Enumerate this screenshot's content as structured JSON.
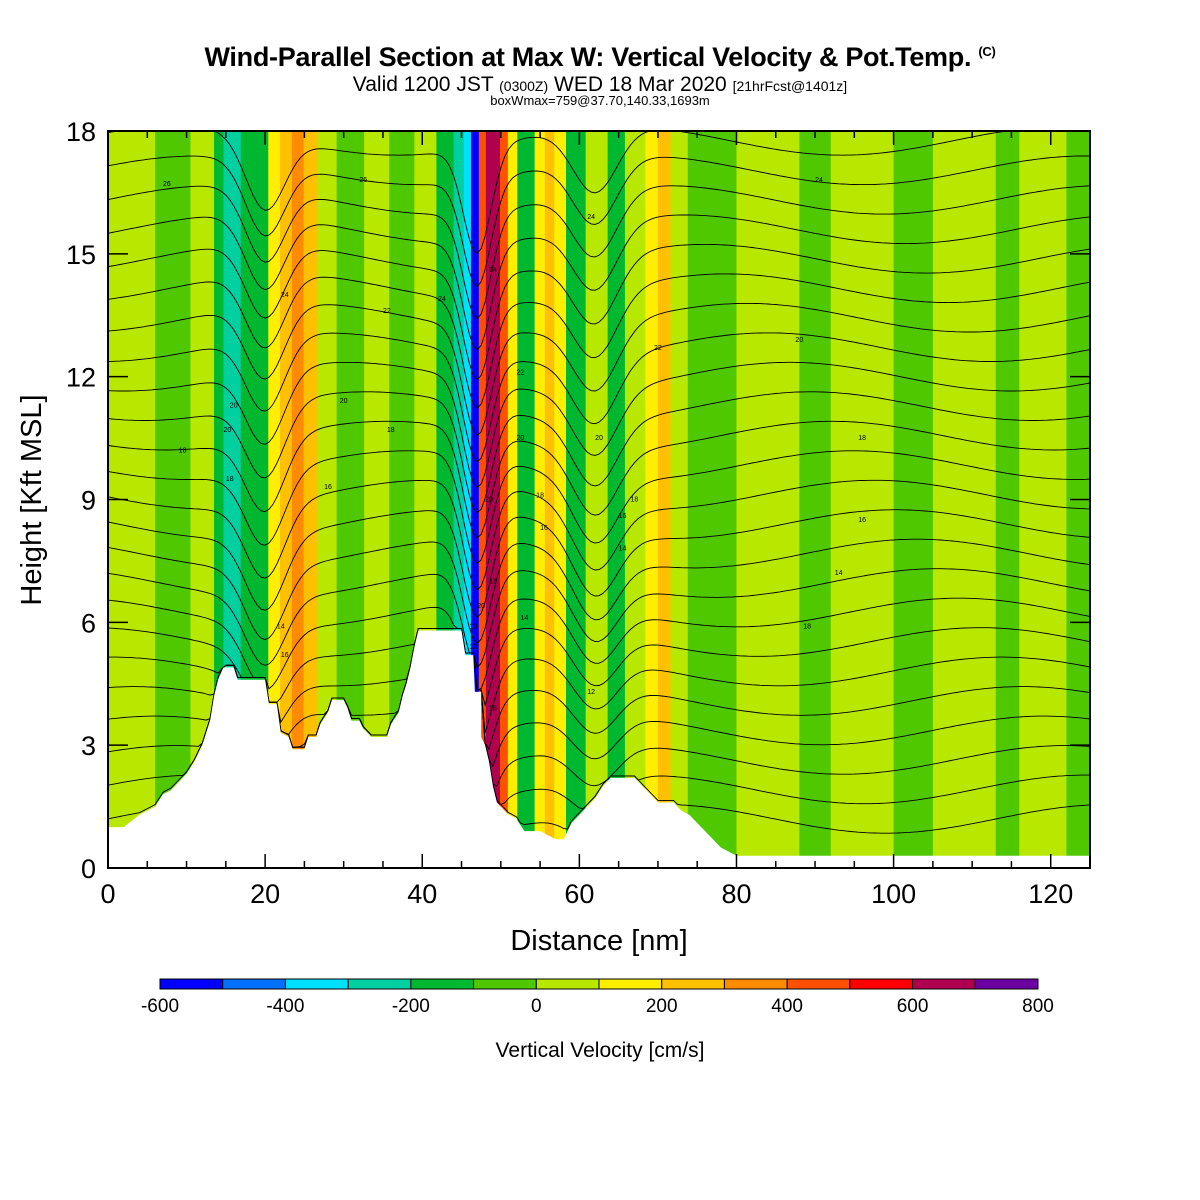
{
  "title": "Wind-Parallel Section at Max W: Vertical Velocity & Pot.Temp.",
  "title_mark": "(C)",
  "valid": {
    "prefix": "Valid 1200 JST",
    "utc": "(0300Z)",
    "date": "WED 18 Mar 2020",
    "fcst": "[21hrFcst@1401z]"
  },
  "subtitle2": "boxWmax=759@37.70,140.33,1693m",
  "chart_data": {
    "type": "heatmap",
    "xlabel": "Distance [nm]",
    "ylabel": "Height [Kft MSL]",
    "xlim": [
      0,
      125
    ],
    "ylim": [
      0,
      18
    ],
    "xticks": [
      "0",
      "20",
      "40",
      "60",
      "80",
      "100",
      "120"
    ],
    "yticks": [
      "0",
      "3",
      "6",
      "9",
      "12",
      "15",
      "18"
    ],
    "colorbar": {
      "title": "Vertical Velocity [cm/s]",
      "bounds": [
        -600,
        -500,
        -400,
        -300,
        -200,
        -100,
        0,
        100,
        200,
        300,
        400,
        500,
        600,
        700,
        800
      ],
      "labels": [
        "-600",
        "-400",
        "-200",
        "0",
        "200",
        "400",
        "600",
        "800"
      ],
      "colors": [
        "#0000ff",
        "#0070ff",
        "#00e0ff",
        "#00d0a0",
        "#00b830",
        "#50c800",
        "#b8e800",
        "#ffee00",
        "#ffc000",
        "#ff8c00",
        "#ff5000",
        "#ff0000",
        "#b00050",
        "#6a00a0"
      ]
    },
    "terrain_kft": [
      [
        0,
        1
      ],
      [
        2,
        1
      ],
      [
        4,
        1.3
      ],
      [
        6,
        1.5
      ],
      [
        7,
        1.8
      ],
      [
        8,
        1.9
      ],
      [
        9,
        2.1
      ],
      [
        10,
        2.3
      ],
      [
        11,
        2.6
      ],
      [
        12,
        3
      ],
      [
        13,
        3.6
      ],
      [
        13.5,
        4.2
      ],
      [
        14,
        4.6
      ],
      [
        14.7,
        4.9
      ],
      [
        16,
        4.9
      ],
      [
        16.5,
        4.6
      ],
      [
        20,
        4.6
      ],
      [
        20.5,
        4.0
      ],
      [
        21.5,
        4.0
      ],
      [
        22,
        3.3
      ],
      [
        23,
        3.2
      ],
      [
        23.5,
        2.9
      ],
      [
        25,
        2.9
      ],
      [
        25.5,
        3.2
      ],
      [
        26.5,
        3.2
      ],
      [
        27,
        3.5
      ],
      [
        28,
        3.8
      ],
      [
        28.5,
        4.1
      ],
      [
        30,
        4.1
      ],
      [
        30.5,
        3.9
      ],
      [
        31,
        3.6
      ],
      [
        32,
        3.6
      ],
      [
        32.5,
        3.4
      ],
      [
        33.5,
        3.2
      ],
      [
        35.5,
        3.2
      ],
      [
        36,
        3.5
      ],
      [
        37,
        3.8
      ],
      [
        37.5,
        4.2
      ],
      [
        38,
        4.5
      ],
      [
        38.5,
        4.9
      ],
      [
        39,
        5.4
      ],
      [
        39.5,
        5.8
      ],
      [
        45,
        5.8
      ],
      [
        45.5,
        5.2
      ],
      [
        46.5,
        5.2
      ],
      [
        46.7,
        4.3
      ],
      [
        47.5,
        4.3
      ],
      [
        47.5,
        3.2
      ],
      [
        48,
        3.0
      ],
      [
        48.5,
        2.6
      ],
      [
        49,
        2.0
      ],
      [
        49.5,
        1.6
      ],
      [
        50,
        1.5
      ],
      [
        51,
        1.3
      ],
      [
        52,
        1.2
      ],
      [
        53,
        0.9
      ],
      [
        55,
        0.9
      ],
      [
        56,
        0.8
      ],
      [
        57,
        0.7
      ],
      [
        58,
        0.7
      ],
      [
        58.5,
        0.9
      ],
      [
        59,
        1.1
      ],
      [
        60,
        1.3
      ],
      [
        61,
        1.5
      ],
      [
        62,
        1.7
      ],
      [
        63,
        2.0
      ],
      [
        64,
        2.2
      ],
      [
        67,
        2.2
      ],
      [
        68,
        2.0
      ],
      [
        69,
        1.8
      ],
      [
        70,
        1.6
      ],
      [
        72,
        1.6
      ],
      [
        73,
        1.4
      ],
      [
        74,
        1.3
      ],
      [
        75,
        1.1
      ],
      [
        76,
        0.9
      ],
      [
        77,
        0.7
      ],
      [
        78,
        0.5
      ],
      [
        80,
        0.3
      ],
      [
        125,
        0.3
      ]
    ],
    "columns": [
      {
        "x": 0,
        "w": 14,
        "v": 20
      },
      {
        "x": 6,
        "w": 6,
        "v": -40
      },
      {
        "x": 10.5,
        "w": 4,
        "v": 20
      },
      {
        "x": 13.5,
        "w": 1.2,
        "v": -150
      },
      {
        "x": 14.7,
        "w": 2.2,
        "v": -260
      },
      {
        "x": 16.9,
        "w": 3.5,
        "v": -130
      },
      {
        "x": 20.4,
        "w": 1.5,
        "v": 150
      },
      {
        "x": 21.9,
        "w": 1.5,
        "v": 260
      },
      {
        "x": 23.4,
        "w": 1.5,
        "v": 340
      },
      {
        "x": 24.9,
        "w": 1.8,
        "v": 220
      },
      {
        "x": 26.7,
        "w": 2.4,
        "v": 60
      },
      {
        "x": 29.1,
        "w": 3.5,
        "v": -70
      },
      {
        "x": 32.6,
        "w": 3.2,
        "v": 40
      },
      {
        "x": 35.8,
        "w": 3.2,
        "v": -60
      },
      {
        "x": 39.0,
        "w": 2.8,
        "v": 50
      },
      {
        "x": 41.8,
        "w": 2.2,
        "v": -150
      },
      {
        "x": 44.0,
        "w": 1.3,
        "v": -260
      },
      {
        "x": 45.3,
        "w": 0.9,
        "v": -380
      },
      {
        "x": 46.2,
        "w": 1.0,
        "v": -520
      },
      {
        "x": 47.2,
        "w": 0.9,
        "v": 420
      },
      {
        "x": 48.1,
        "w": 1.8,
        "v": 620
      },
      {
        "x": 49.9,
        "w": 1.0,
        "v": 440
      },
      {
        "x": 50.9,
        "w": 1.2,
        "v": 150
      },
      {
        "x": 52.1,
        "w": 2.2,
        "v": -130
      },
      {
        "x": 54.3,
        "w": 1.3,
        "v": 160
      },
      {
        "x": 55.6,
        "w": 1.2,
        "v": 260
      },
      {
        "x": 56.8,
        "w": 1.5,
        "v": 120
      },
      {
        "x": 58.3,
        "w": 2.5,
        "v": -120
      },
      {
        "x": 60.8,
        "w": 2.8,
        "v": 40
      },
      {
        "x": 63.6,
        "w": 2.2,
        "v": -140
      },
      {
        "x": 65.8,
        "w": 2.6,
        "v": 30
      },
      {
        "x": 68.4,
        "w": 1.6,
        "v": 150
      },
      {
        "x": 70.0,
        "w": 1.6,
        "v": 260
      },
      {
        "x": 71.6,
        "w": 2.2,
        "v": 60
      },
      {
        "x": 73.8,
        "w": 6.2,
        "v": -50
      },
      {
        "x": 80.0,
        "w": 8.0,
        "v": 40
      },
      {
        "x": 88.0,
        "w": 4.0,
        "v": -30
      },
      {
        "x": 92.0,
        "w": 8.0,
        "v": 40
      },
      {
        "x": 100.0,
        "w": 5.0,
        "v": -40
      },
      {
        "x": 105.0,
        "w": 8.0,
        "v": 40
      },
      {
        "x": 113.0,
        "w": 3.0,
        "v": -40
      },
      {
        "x": 116.0,
        "w": 6.0,
        "v": 30
      },
      {
        "x": 122.0,
        "w": 3.0,
        "v": -40
      }
    ],
    "contour_labels": [
      {
        "x": 7.5,
        "y": 16.7,
        "t": "26"
      },
      {
        "x": 32.5,
        "y": 16.8,
        "t": "26"
      },
      {
        "x": 61.5,
        "y": 15.9,
        "t": "24"
      },
      {
        "x": 90.5,
        "y": 16.8,
        "t": "24"
      },
      {
        "x": 22.5,
        "y": 14.0,
        "t": "24"
      },
      {
        "x": 35.5,
        "y": 13.6,
        "t": "22"
      },
      {
        "x": 42.5,
        "y": 13.9,
        "t": "24"
      },
      {
        "x": 49.0,
        "y": 14.6,
        "t": "24"
      },
      {
        "x": 70.0,
        "y": 12.7,
        "t": "22"
      },
      {
        "x": 88.0,
        "y": 12.9,
        "t": "20"
      },
      {
        "x": 16.0,
        "y": 11.3,
        "t": "20"
      },
      {
        "x": 15.2,
        "y": 10.7,
        "t": "20"
      },
      {
        "x": 30.0,
        "y": 11.4,
        "t": "20"
      },
      {
        "x": 52.5,
        "y": 12.1,
        "t": "22"
      },
      {
        "x": 9.5,
        "y": 10.2,
        "t": "18"
      },
      {
        "x": 36.0,
        "y": 10.7,
        "t": "18"
      },
      {
        "x": 52.5,
        "y": 10.5,
        "t": "20"
      },
      {
        "x": 62.5,
        "y": 10.5,
        "t": "20"
      },
      {
        "x": 96.0,
        "y": 10.5,
        "t": "18"
      },
      {
        "x": 15.5,
        "y": 9.5,
        "t": "18"
      },
      {
        "x": 28.0,
        "y": 9.3,
        "t": "16"
      },
      {
        "x": 48.5,
        "y": 9.0,
        "t": "20"
      },
      {
        "x": 55.0,
        "y": 9.1,
        "t": "18"
      },
      {
        "x": 67.0,
        "y": 9.0,
        "t": "18"
      },
      {
        "x": 65.5,
        "y": 8.6,
        "t": "16"
      },
      {
        "x": 96.0,
        "y": 8.5,
        "t": "16"
      },
      {
        "x": 55.5,
        "y": 8.3,
        "t": "16"
      },
      {
        "x": 65.5,
        "y": 7.8,
        "t": "14"
      },
      {
        "x": 49.0,
        "y": 7.0,
        "t": "18"
      },
      {
        "x": 93.0,
        "y": 7.2,
        "t": "14"
      },
      {
        "x": 47.5,
        "y": 6.4,
        "t": "20"
      },
      {
        "x": 22.0,
        "y": 5.9,
        "t": "14"
      },
      {
        "x": 46.5,
        "y": 5.9,
        "t": "10"
      },
      {
        "x": 53.0,
        "y": 6.1,
        "t": "14"
      },
      {
        "x": 89.0,
        "y": 5.9,
        "t": "18"
      },
      {
        "x": 46.5,
        "y": 5.4,
        "t": "12"
      },
      {
        "x": 22.5,
        "y": 5.2,
        "t": "16"
      },
      {
        "x": 61.5,
        "y": 4.3,
        "t": "12"
      },
      {
        "x": 49.0,
        "y": 3.9,
        "t": "16"
      }
    ]
  }
}
